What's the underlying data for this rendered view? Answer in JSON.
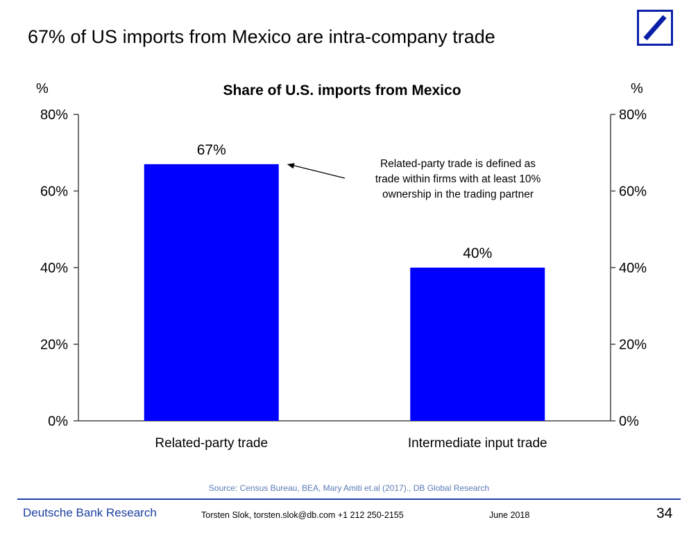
{
  "slide": {
    "title": "67% of US imports from Mexico are intra-company trade",
    "logo_icon": "deutsche-bank-logo-icon"
  },
  "chart_data": {
    "type": "bar",
    "title": "Share of U.S. imports from Mexico",
    "categories": [
      "Related-party trade",
      "Intermediate input trade"
    ],
    "values": [
      67,
      40
    ],
    "data_labels": [
      "67%",
      "40%"
    ],
    "ylabel_left": "%",
    "ylabel_right": "%",
    "ylim": [
      0,
      80
    ],
    "yticks": [
      0,
      20,
      40,
      60,
      80
    ],
    "ytick_labels": [
      "0%",
      "20%",
      "40%",
      "60%",
      "80%"
    ],
    "dual_y_axis": true,
    "grid": false,
    "bar_color": "#0000ff",
    "annotation": {
      "lines": [
        "Related-party trade is defined as",
        "trade within firms with at least 10%",
        "ownership in the trading partner"
      ],
      "points_to_category": "Related-party trade"
    }
  },
  "footer": {
    "source": "Source: Census Bureau, BEA, Mary Amiti et.al (2017)., DB Global Research",
    "brand": "Deutsche Bank Research",
    "author": "Torsten Slok, torsten.slok@db.com  +1 212 250-2155",
    "date": "June 2018",
    "page_number": "34"
  },
  "colors": {
    "brand_blue": "#0a1fa8",
    "footer_blue": "#1b3fa0",
    "source_text": "#5a79b5",
    "axis": "#444444"
  }
}
